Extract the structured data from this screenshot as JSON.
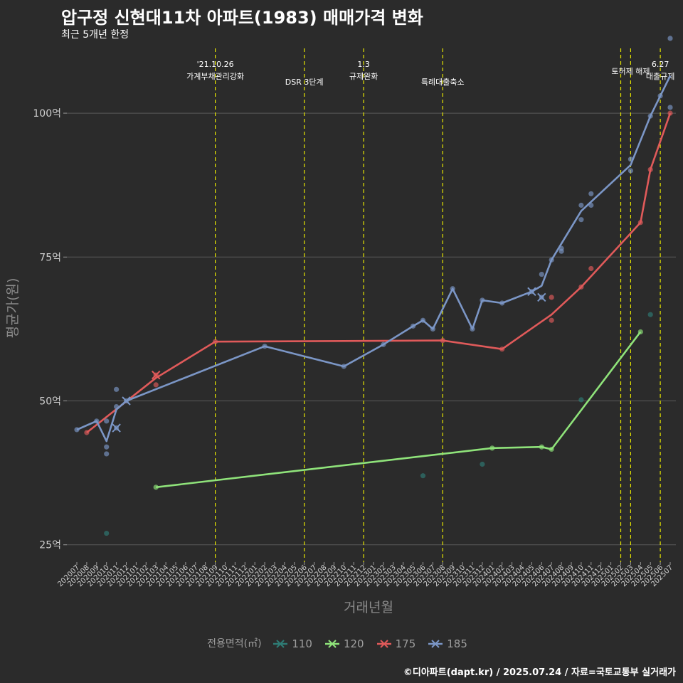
{
  "title": "압구정 신현대11차 아파트(1983) 매매가격 변화",
  "subtitle": "최근 5개년 한정",
  "caption": "©디아파트(dapt.kr) / 2025.07.24 / 자료=국토교통부 실거래가",
  "chart_data": {
    "type": "line",
    "xlabel": "거래년월",
    "ylabel": "평균가(원)",
    "ylim": [
      22,
      112
    ],
    "yticks": [
      {
        "v": 25,
        "label": "25억"
      },
      {
        "v": 50,
        "label": "50억"
      },
      {
        "v": 75,
        "label": "75억"
      },
      {
        "v": 100,
        "label": "100억"
      }
    ],
    "categories": [
      "202007",
      "202008",
      "202009",
      "202010",
      "202011",
      "202012",
      "202101",
      "202102",
      "202103",
      "202104",
      "202105",
      "202106",
      "202107",
      "202108",
      "202109",
      "202110",
      "202111",
      "202112",
      "202201",
      "202202",
      "202203",
      "202204",
      "202205",
      "202206",
      "202207",
      "202208",
      "202209",
      "202210",
      "202211",
      "202212",
      "202301",
      "202302",
      "202303",
      "202304",
      "202305",
      "202306",
      "202307",
      "202308",
      "202309",
      "202310",
      "202311",
      "202312",
      "202401",
      "202402",
      "202403",
      "202404",
      "202405",
      "202406",
      "202407",
      "202408",
      "202409",
      "202410",
      "202411",
      "202412",
      "202501",
      "202502",
      "202503",
      "202504",
      "202505",
      "202506",
      "202507"
    ],
    "legend_title": "전용면적(㎡)",
    "series": [
      {
        "name": "110",
        "color": "#2e7b74",
        "points": [],
        "scatter": [
          [
            3,
            27
          ],
          [
            35,
            37
          ],
          [
            41,
            39
          ],
          [
            51,
            50.2
          ],
          [
            58,
            65
          ]
        ],
        "crosses": []
      },
      {
        "name": "120",
        "color": "#8fe37a",
        "points": [
          [
            8,
            35
          ],
          [
            42,
            41.8
          ],
          [
            47,
            42
          ],
          [
            48,
            41.6
          ],
          [
            57,
            62
          ]
        ],
        "scatter": [
          [
            8,
            35
          ],
          [
            42,
            41.8
          ],
          [
            47,
            42
          ],
          [
            48,
            41.6
          ],
          [
            57,
            62
          ]
        ],
        "crosses": []
      },
      {
        "name": "175",
        "color": "#e05a5a",
        "points": [
          [
            1,
            44.5
          ],
          [
            8,
            54
          ],
          [
            14,
            60.3
          ],
          [
            37,
            60.5
          ],
          [
            43,
            59
          ],
          [
            48,
            65
          ],
          [
            51,
            69.8
          ],
          [
            57,
            81
          ],
          [
            58,
            90.2
          ],
          [
            60,
            100
          ]
        ],
        "scatter": [
          [
            1,
            44.5
          ],
          [
            8,
            54.5
          ],
          [
            8,
            52.8
          ],
          [
            14,
            60.3
          ],
          [
            37,
            60.5
          ],
          [
            43,
            59
          ],
          [
            48,
            68
          ],
          [
            48,
            64
          ],
          [
            51,
            69.8
          ],
          [
            52,
            73
          ],
          [
            57,
            81
          ],
          [
            58,
            90.2
          ],
          [
            60,
            100
          ]
        ],
        "crosses": [
          [
            8,
            54.5
          ]
        ]
      },
      {
        "name": "185",
        "color": "#7b96c6",
        "points": [
          [
            0,
            45
          ],
          [
            2,
            46.5
          ],
          [
            3,
            43
          ],
          [
            4,
            48.5
          ],
          [
            5,
            50
          ],
          [
            19,
            59.5
          ],
          [
            27,
            56
          ],
          [
            31,
            59.8
          ],
          [
            34,
            63
          ],
          [
            35,
            64
          ],
          [
            36,
            62.5
          ],
          [
            38,
            69.5
          ],
          [
            40,
            62.5
          ],
          [
            41,
            67.5
          ],
          [
            43,
            67
          ],
          [
            46,
            69
          ],
          [
            47,
            70
          ],
          [
            48,
            74.5
          ],
          [
            51,
            83
          ],
          [
            56,
            91
          ],
          [
            58,
            99.5
          ],
          [
            59,
            103
          ],
          [
            60,
            106.5
          ]
        ],
        "scatter": [
          [
            0,
            45
          ],
          [
            2,
            46.5
          ],
          [
            3,
            46.5
          ],
          [
            3,
            42
          ],
          [
            3,
            40.8
          ],
          [
            4,
            52
          ],
          [
            4,
            49
          ],
          [
            4,
            45.3
          ],
          [
            5,
            50
          ],
          [
            19,
            59.5
          ],
          [
            27,
            56
          ],
          [
            31,
            59.8
          ],
          [
            34,
            63
          ],
          [
            35,
            64
          ],
          [
            36,
            62.5
          ],
          [
            38,
            69.5
          ],
          [
            40,
            62.5
          ],
          [
            41,
            67.5
          ],
          [
            43,
            67
          ],
          [
            46,
            69
          ],
          [
            47,
            68
          ],
          [
            47,
            72
          ],
          [
            48,
            74.5
          ],
          [
            49,
            76
          ],
          [
            49,
            76.5
          ],
          [
            51,
            84
          ],
          [
            51,
            81.5
          ],
          [
            52,
            86
          ],
          [
            52,
            84
          ],
          [
            56,
            92
          ],
          [
            56,
            90
          ],
          [
            58,
            99.5
          ],
          [
            59,
            103
          ],
          [
            60,
            101
          ],
          [
            60,
            113
          ]
        ],
        "crosses": [
          [
            4,
            45.3
          ],
          [
            5,
            50
          ],
          [
            46,
            69
          ],
          [
            47,
            68
          ]
        ]
      }
    ],
    "events": [
      {
        "x": 14,
        "lines": [
          "'21.10.26",
          "가계부채관리강화"
        ],
        "row": 0
      },
      {
        "x": 23,
        "lines": [
          "DSR 3단계"
        ],
        "row": 1
      },
      {
        "x": 29,
        "lines": [
          "1.3",
          "규제완화"
        ],
        "row": 0
      },
      {
        "x": 37,
        "lines": [
          "특례대출축소"
        ],
        "row": 1
      },
      {
        "x": 55,
        "lines": [],
        "row": 0
      },
      {
        "x": 56,
        "lines": [
          "토허제 해제"
        ],
        "row": 0
      },
      {
        "x": 59,
        "lines": [
          "6.27",
          "대출규제"
        ],
        "row": 0
      }
    ]
  }
}
